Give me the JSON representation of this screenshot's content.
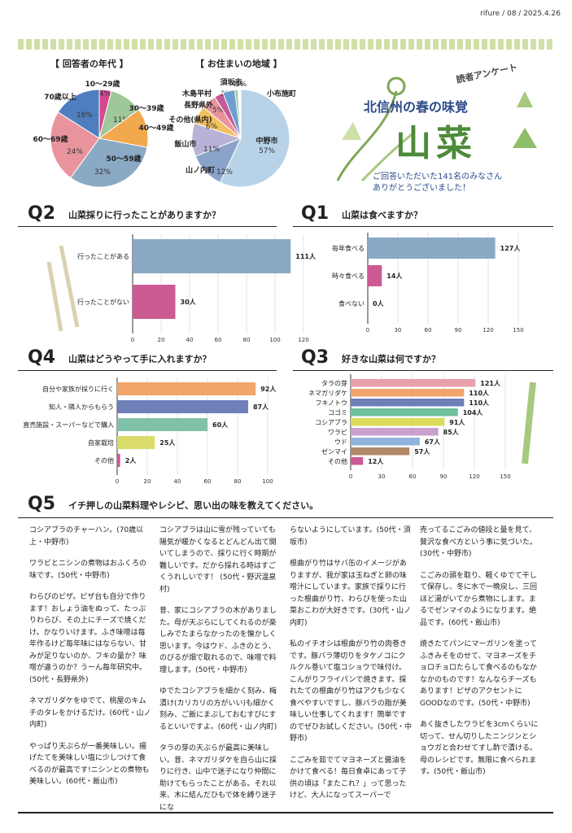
{
  "issue": "rifure / 08 / 2025.4.26",
  "age_title": "【 回答者の年代 】",
  "area_title": "【 お住まいの地域 】",
  "age_pie": [
    {
      "label": "10～29歳",
      "value": "4%",
      "pct": 4,
      "color": "#d6488f"
    },
    {
      "label": "30～39歳",
      "value": "11%",
      "pct": 11,
      "color": "#9ec79a"
    },
    {
      "label": "40～49歳",
      "value": "13%",
      "pct": 13,
      "color": "#f2a94d"
    },
    {
      "label": "50～59歳",
      "value": "32%",
      "pct": 32,
      "color": "#8aa9c4"
    },
    {
      "label": "60～69歳",
      "value": "24%",
      "pct": 24,
      "color": "#e9949d"
    },
    {
      "label": "70歳以上",
      "value": "16%",
      "pct": 16,
      "color": "#4f7ec0"
    }
  ],
  "area_pie": [
    {
      "label": "中野市",
      "value": "57%",
      "pct": 57,
      "color": "#b8d3e8"
    },
    {
      "label": "山ノ内町",
      "value": "12%",
      "pct": 12,
      "color": "#8aa3c8"
    },
    {
      "label": "飯山市",
      "value": "11%",
      "pct": 11,
      "color": "#b8b3d6"
    },
    {
      "label": "その他(県内)",
      "value": "6%",
      "pct": 6,
      "color": "#f2c05e"
    },
    {
      "label": "長野県外",
      "value": "5%",
      "pct": 5,
      "color": "#e9949d"
    },
    {
      "label": "木島平村",
      "value": "3%",
      "pct": 3,
      "color": "#c45a9a"
    },
    {
      "label": "須坂市",
      "value": "4%",
      "pct": 4,
      "color": "#6e9ecf"
    },
    {
      "label": "小布施町",
      "value": "1%",
      "pct": 1,
      "color": "#9ec79a"
    }
  ],
  "title": {
    "kicker": "読者アンケート",
    "sub": "北信州の春の味覚",
    "main": "山菜",
    "thanks1": "ご回答いただいた141名のみなさん",
    "thanks2": "ありがとうございました！"
  },
  "q2": {
    "num": "Q2",
    "text": "山菜採りに行ったことがありますか？"
  },
  "q1": {
    "num": "Q1",
    "text": "山菜は食べますか？"
  },
  "q4": {
    "num": "Q4",
    "text": "山菜はどうやって手に入れますか？"
  },
  "q3": {
    "num": "Q3",
    "text": "好きな山菜は何ですか？"
  },
  "q5": {
    "num": "Q5",
    "text": "イチ押しの山菜料理やレシピ、思い出の味を教えてください。"
  },
  "chart_data": [
    {
      "type": "bar",
      "id": "q2",
      "categories": [
        "行ったことがある",
        "行ったことがない"
      ],
      "values": [
        111,
        30
      ],
      "labels": [
        "111人",
        "30人"
      ],
      "xlim": [
        0,
        120
      ],
      "ticks": [
        0,
        20,
        40,
        60,
        80,
        100,
        120
      ],
      "colors": [
        "#8aa9c4",
        "#cc5a93"
      ]
    },
    {
      "type": "bar",
      "id": "q1",
      "categories": [
        "毎年食べる",
        "時々食べる",
        "食べない"
      ],
      "values": [
        127,
        14,
        0
      ],
      "labels": [
        "127人",
        "14人",
        "0人"
      ],
      "xlim": [
        0,
        150
      ],
      "ticks": [
        0,
        30,
        60,
        90,
        120,
        150
      ],
      "colors": [
        "#8aa9c4",
        "#cc5a93",
        "#cc5a93"
      ]
    },
    {
      "type": "bar",
      "id": "q4",
      "categories": [
        "自分や家族が採りに行く",
        "知人・隣人からもらう",
        "直売施設・スーパーなどで購入",
        "自家栽培",
        "その他"
      ],
      "values": [
        92,
        87,
        60,
        25,
        2
      ],
      "labels": [
        "92人",
        "87人",
        "60人",
        "25人",
        "2人"
      ],
      "xlim": [
        0,
        100
      ],
      "ticks": [
        0,
        20,
        40,
        60,
        80,
        100
      ],
      "colors": [
        "#f2a56a",
        "#6f7fb8",
        "#7fc2a8",
        "#d9dc6a",
        "#cc5a93"
      ]
    },
    {
      "type": "bar",
      "id": "q3",
      "categories": [
        "タラの芽",
        "ネマガリダケ",
        "フキノトウ",
        "コゴミ",
        "コシアブラ",
        "ワラビ",
        "ウド",
        "ゼンマイ",
        "その他"
      ],
      "values": [
        121,
        110,
        110,
        104,
        91,
        85,
        67,
        57,
        12
      ],
      "labels": [
        "121人",
        "110人",
        "110人",
        "104人",
        "91人",
        "85人",
        "67人",
        "57人",
        "12人"
      ],
      "xlim": [
        0,
        150
      ],
      "ticks": [
        0,
        30,
        60,
        90,
        120,
        150
      ],
      "colors": [
        "#e9a0aa",
        "#f2a56a",
        "#6f7fb8",
        "#6fbf9a",
        "#d9dc5a",
        "#c9a0d0",
        "#8fb3dc",
        "#b08a6a",
        "#cc5a93"
      ]
    }
  ],
  "columns": [
    [
      "コシアブラのチャーハン。(70歳以上・中野市)",
      "ワラビとニシンの煮物はおふくろの味です。(50代・中野市)",
      "わらびのピザ。ピザ台も自分で作ります！おしょう油をぬって、たっぷりわらび、その上にチーズで焼くだけ。かなりいけます。ふき味噌は毎年作るけど毎年味にはならない、甘みが足りないのか、フキの量か？味噌が違うのか？うーん毎年研究中。(50代・長野県外)",
      "ネマガリダケをゆでて、桃屋のキムチのタレをかけるだけ。(60代・山ノ内町)",
      "やっぱり天ぷらが一番美味しい。揚げたてを美味しい塩に少しつけて食べるのが最高です!ニシンとの煮物も美味しい。(60代・飯山市)"
    ],
    [
      "コシアブラは山に雪が残っていても陽気が暖かくなるとどんどん出て開いてしまうので、採りに行く時期が難しいです。だから採れる時はすごくうれしいです！ (50代・野沢温泉村)",
      "昔、家にコシアブラの木がありました。母が天ぷらにしてくれるのが楽しみでたまらなかったのを懐かしく思います。今はウド、ふきのとう、のびるが畑で取れるので、味噌で料理します。(50代・中野市)",
      "ゆでたコシアブラを細かく刻み、梅漬け(カリカリの方がいい)も細かく刻み、ご飯にまぶしておむすびにするといいですよ。(60代・山ノ内町)",
      "タラの芽の天ぷらが最高に美味しい。昔、ネマガリダケを自ら山に採りに行き、山中で迷子になり仲間に助けてもらったことがある。それ以来、木に結んだひもで体を縛り迷子にな"
    ],
    [
      "らないようにしています。(50代・須坂市)",
      "根曲がり竹はサバ缶のイメージがありますが、我が家は玉ねぎと卵の味噌汁にしています。家族で採りに行った根曲がり竹、わらびを使った山菜おこわが大好きです。(30代・山ノ内町)",
      "私のイチオシは根曲がり竹の肉巻きです。豚バラ薄切りをタケノコにクルクル巻いて塩コショウで味付け。こんがりフライパンで焼きます。採れたての根曲がり竹はアクも少なく食べやすいですし、豚バラの脂が美味しい仕事してくれます！簡単ですのでぜひお試しください。(50代・中野市)",
      "こごみを茹でてマヨネーズと醤油をかけて食べる！毎日食卓にあって子供の頃は「またこれ？」って思ったけど、大人になってスーパーで"
    ],
    [
      "売ってるこごみの値段と量を見て、贅沢な食べ方という事に気づいた。(30代・中野市)",
      "こごみの頭を取り、軽くゆでて干して保存し、冬に水で一晩戻し、三回ほど湯がいてから煮物にします。まるでゼンマイのようになります。絶品です。(60代・飯山市)",
      "焼きたてパンにマーガリンを塗ってふきみそをのせて、マヨネーズをチョロチョロたらして食べるのもなかなかのものです！なんならチーズもあります！ピザのアクセントにGOODなのです。(50代・中野市)",
      "あく抜きしたワラビを3cmくらいに切って、せん切りしたニンジンとショウガと合わせてすし酢で漬ける。母のレシピです。無限に食べられます。(50代・飯山市)"
    ]
  ]
}
